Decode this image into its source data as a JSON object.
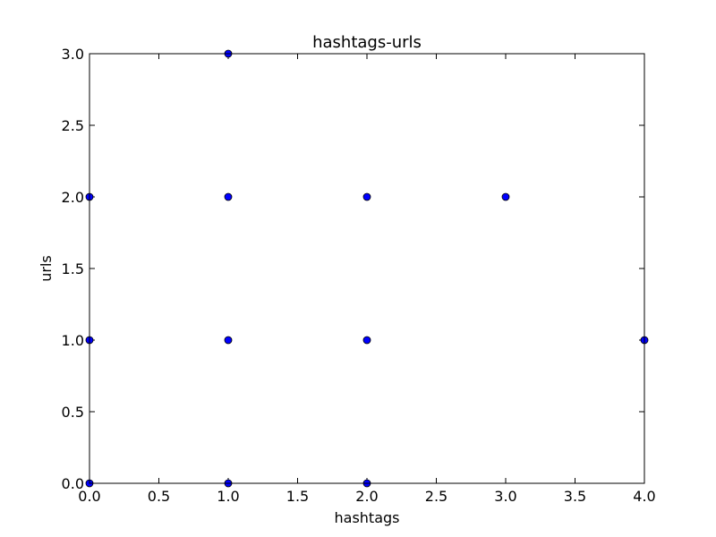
{
  "chart_data": {
    "type": "scatter",
    "title": "hashtags-urls",
    "xlabel": "hashtags",
    "ylabel": "urls",
    "xlim": [
      0,
      4
    ],
    "ylim": [
      0,
      3
    ],
    "xticks": [
      "0.0",
      "0.5",
      "1.0",
      "1.5",
      "2.0",
      "2.5",
      "3.0",
      "3.5",
      "4.0"
    ],
    "yticks": [
      "0.0",
      "0.5",
      "1.0",
      "1.5",
      "2.0",
      "2.5",
      "3.0"
    ],
    "grid": false,
    "marker_color": "#0000ff",
    "points": [
      {
        "x": 0,
        "y": 0
      },
      {
        "x": 0,
        "y": 1
      },
      {
        "x": 0,
        "y": 2
      },
      {
        "x": 1,
        "y": 0
      },
      {
        "x": 1,
        "y": 1
      },
      {
        "x": 1,
        "y": 2
      },
      {
        "x": 1,
        "y": 3
      },
      {
        "x": 2,
        "y": 0
      },
      {
        "x": 2,
        "y": 1
      },
      {
        "x": 2,
        "y": 2
      },
      {
        "x": 3,
        "y": 2
      },
      {
        "x": 4,
        "y": 1
      }
    ]
  }
}
